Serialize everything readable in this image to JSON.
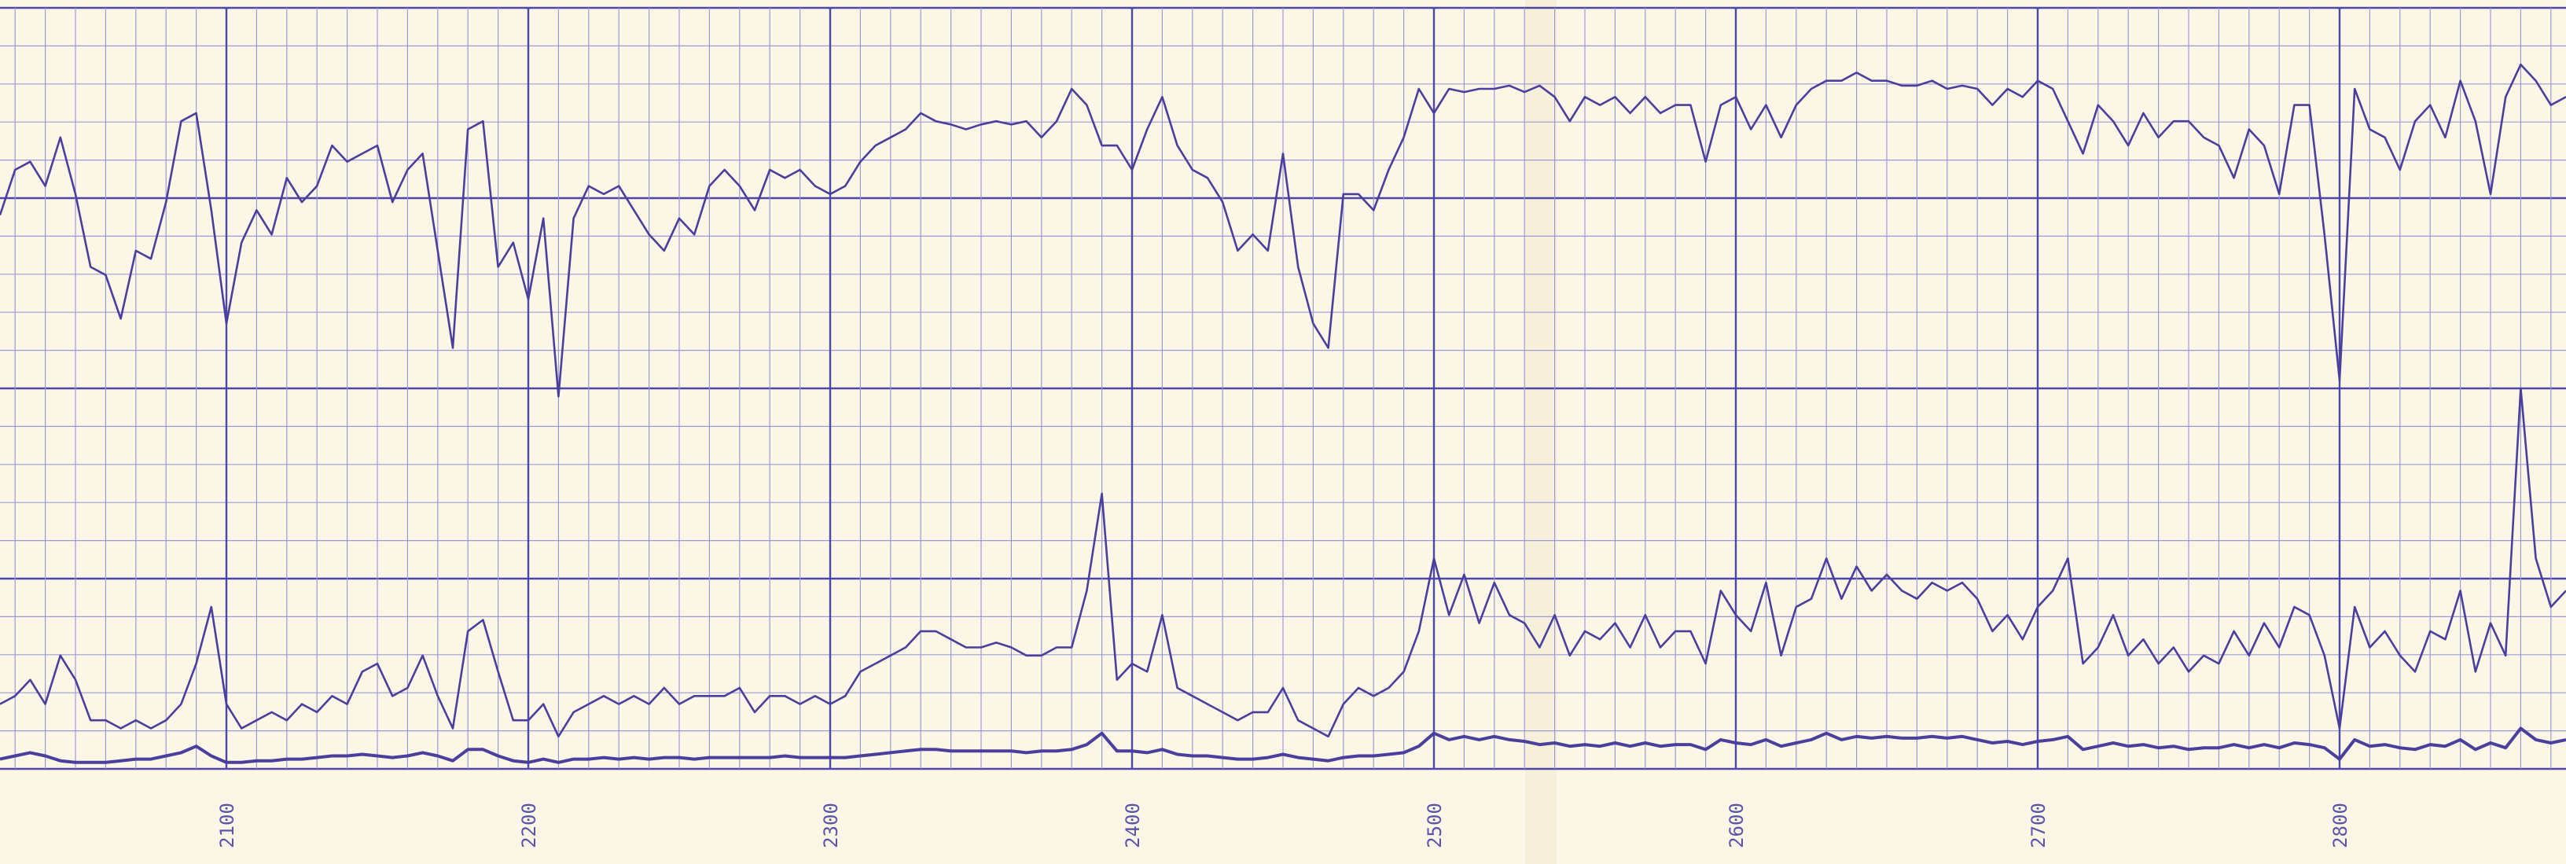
{
  "chart_data": {
    "type": "line",
    "x": [
      2025,
      2030,
      2035,
      2040,
      2045,
      2050,
      2055,
      2060,
      2065,
      2070,
      2075,
      2080,
      2085,
      2090,
      2095,
      2100,
      2105,
      2110,
      2115,
      2120,
      2125,
      2130,
      2135,
      2140,
      2145,
      2150,
      2155,
      2160,
      2165,
      2170,
      2175,
      2180,
      2185,
      2190,
      2195,
      2200,
      2205,
      2210,
      2215,
      2220,
      2225,
      2230,
      2235,
      2240,
      2245,
      2250,
      2255,
      2260,
      2265,
      2270,
      2275,
      2280,
      2285,
      2290,
      2295,
      2300,
      2305,
      2310,
      2315,
      2320,
      2325,
      2330,
      2335,
      2340,
      2345,
      2350,
      2355,
      2360,
      2365,
      2370,
      2375,
      2380,
      2385,
      2390,
      2395,
      2400,
      2405,
      2410,
      2415,
      2420,
      2425,
      2430,
      2435,
      2440,
      2445,
      2450,
      2455,
      2460,
      2465,
      2470,
      2475,
      2480,
      2485,
      2490,
      2495,
      2500,
      2505,
      2510,
      2515,
      2520,
      2525,
      2530,
      2535,
      2540,
      2545,
      2550,
      2555,
      2560,
      2565,
      2570,
      2575,
      2580,
      2585,
      2590,
      2595,
      2600,
      2605,
      2610,
      2615,
      2620,
      2625,
      2630,
      2635,
      2640,
      2645,
      2650,
      2655,
      2660,
      2665,
      2670,
      2675,
      2680,
      2685,
      2690,
      2695,
      2700,
      2705,
      2710,
      2715,
      2720,
      2725,
      2730,
      2735,
      2740,
      2745,
      2750,
      2755,
      2760,
      2765,
      2770,
      2775,
      2780,
      2785,
      2790,
      2795,
      2800,
      2805,
      2810,
      2815,
      2820,
      2825,
      2830,
      2835,
      2840,
      2845,
      2850,
      2855,
      2860,
      2865,
      2870,
      2875
    ],
    "series": [
      {
        "color": "#4a3f9c",
        "values": [
          342,
          370,
          375,
          360,
          390,
          355,
          310,
          305,
          278,
          320,
          315,
          350,
          400,
          405,
          345,
          275,
          325,
          345,
          330,
          365,
          350,
          360,
          385,
          375,
          380,
          385,
          350,
          370,
          380,
          320,
          260,
          395,
          400,
          310,
          325,
          290,
          340,
          230,
          340,
          360,
          355,
          360,
          345,
          330,
          320,
          340,
          330,
          360,
          370,
          360,
          345,
          370,
          365,
          370,
          360,
          355,
          360,
          375,
          385,
          390,
          395,
          405,
          400,
          398,
          395,
          398,
          400,
          398,
          400,
          390,
          400,
          420,
          410,
          385,
          385,
          370,
          395,
          415,
          385,
          370,
          365,
          350,
          320,
          330,
          320,
          380,
          310,
          275,
          260,
          355,
          355,
          345,
          370,
          390,
          420,
          405,
          420,
          418,
          420,
          420,
          422,
          418,
          422,
          415,
          400,
          415,
          410,
          415,
          405,
          415,
          405,
          410,
          410,
          375,
          410,
          415,
          395,
          410,
          390,
          410,
          420,
          425,
          425,
          430,
          425,
          425,
          422,
          422,
          425,
          420,
          422,
          420,
          410,
          420,
          415,
          425,
          420,
          400,
          380,
          410,
          400,
          385,
          405,
          390,
          400,
          400,
          390,
          385,
          365,
          395,
          385,
          355,
          410,
          410,
          330,
          240,
          420,
          395,
          390,
          370,
          400,
          410,
          390,
          425,
          400,
          355,
          415,
          435,
          425,
          410,
          415
        ]
      },
      {
        "color": "#4a3f9c",
        "values": [
          40,
          45,
          55,
          40,
          70,
          55,
          30,
          30,
          25,
          30,
          25,
          30,
          40,
          65,
          100,
          40,
          25,
          30,
          35,
          30,
          40,
          35,
          45,
          40,
          60,
          65,
          45,
          50,
          70,
          45,
          25,
          85,
          92,
          60,
          30,
          30,
          40,
          20,
          35,
          40,
          45,
          40,
          45,
          40,
          50,
          40,
          45,
          45,
          45,
          50,
          35,
          45,
          45,
          40,
          45,
          40,
          45,
          60,
          65,
          70,
          75,
          85,
          85,
          80,
          75,
          75,
          78,
          75,
          70,
          70,
          75,
          75,
          110,
          170,
          55,
          65,
          60,
          95,
          50,
          45,
          40,
          35,
          30,
          35,
          35,
          50,
          30,
          25,
          20,
          40,
          50,
          45,
          50,
          60,
          85,
          130,
          95,
          120,
          90,
          115,
          95,
          90,
          75,
          95,
          70,
          85,
          80,
          90,
          75,
          95,
          75,
          85,
          85,
          65,
          110,
          95,
          85,
          115,
          70,
          100,
          105,
          130,
          105,
          125,
          110,
          120,
          110,
          105,
          115,
          110,
          115,
          105,
          85,
          95,
          80,
          100,
          110,
          130,
          65,
          75,
          95,
          70,
          80,
          65,
          75,
          60,
          70,
          65,
          85,
          70,
          90,
          75,
          100,
          95,
          70,
          25,
          100,
          75,
          85,
          70,
          60,
          85,
          80,
          110,
          60,
          90,
          70,
          235,
          130,
          100,
          110
        ]
      },
      {
        "color": "#4a3f9c",
        "values": [
          6,
          8,
          10,
          8,
          5,
          4,
          4,
          4,
          5,
          6,
          6,
          8,
          10,
          14,
          8,
          4,
          4,
          5,
          5,
          6,
          6,
          7,
          8,
          8,
          9,
          8,
          7,
          8,
          10,
          8,
          5,
          12,
          12,
          8,
          5,
          4,
          6,
          4,
          6,
          6,
          7,
          6,
          7,
          6,
          7,
          7,
          6,
          7,
          7,
          7,
          7,
          7,
          8,
          7,
          7,
          7,
          7,
          8,
          9,
          10,
          11,
          12,
          12,
          11,
          11,
          11,
          11,
          11,
          10,
          11,
          11,
          12,
          15,
          22,
          11,
          11,
          10,
          12,
          9,
          8,
          8,
          7,
          6,
          6,
          7,
          9,
          7,
          6,
          5,
          7,
          8,
          8,
          9,
          10,
          14,
          22,
          18,
          20,
          18,
          20,
          18,
          17,
          15,
          16,
          14,
          15,
          14,
          16,
          14,
          16,
          14,
          15,
          15,
          12,
          18,
          16,
          15,
          18,
          14,
          16,
          18,
          22,
          18,
          20,
          19,
          20,
          19,
          19,
          20,
          19,
          20,
          18,
          16,
          17,
          15,
          17,
          18,
          20,
          12,
          14,
          16,
          14,
          15,
          13,
          14,
          12,
          13,
          13,
          15,
          13,
          15,
          13,
          16,
          15,
          13,
          6,
          18,
          14,
          15,
          13,
          12,
          15,
          14,
          18,
          12,
          16,
          13,
          25,
          18,
          16,
          18
        ]
      }
    ],
    "xlim": [
      2025,
      2875
    ],
    "xticks": [
      2100,
      2200,
      2300,
      2400,
      2500,
      2600,
      2700,
      2800
    ],
    "ylim": [
      0,
      470
    ],
    "grid": true
  }
}
